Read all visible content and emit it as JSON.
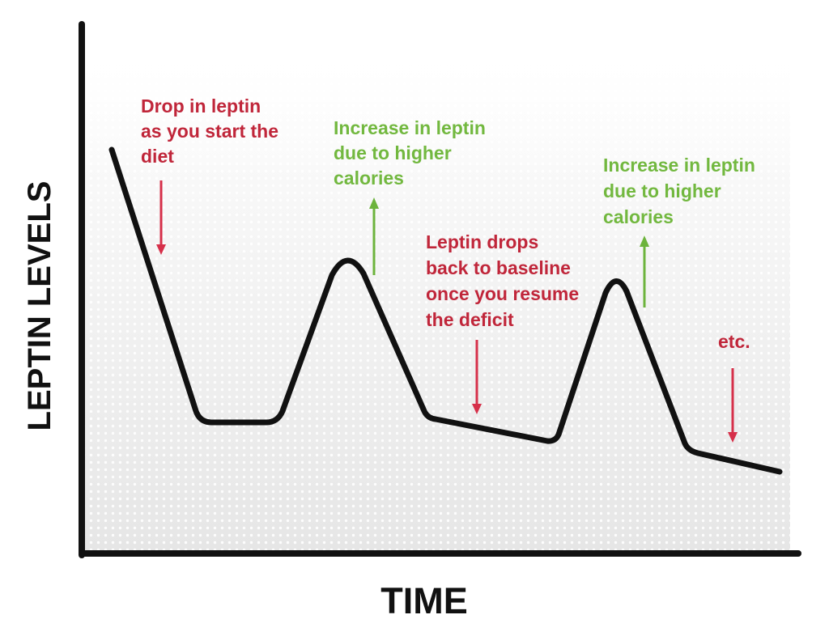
{
  "diagram": {
    "y_axis_title": "LEPTIN LEVELS",
    "x_axis_title": "TIME",
    "annotations": [
      {
        "id": "drop-start",
        "kind": "drop",
        "lines": [
          "Drop in leptin",
          "as you start the",
          "diet"
        ]
      },
      {
        "id": "increase-1",
        "kind": "increase",
        "lines": [
          "Increase in leptin",
          "due to higher",
          "calories"
        ]
      },
      {
        "id": "drop-baseline",
        "kind": "drop",
        "lines": [
          "Leptin drops",
          "back to baseline",
          "once you resume",
          "the deficit"
        ]
      },
      {
        "id": "increase-2",
        "kind": "increase",
        "lines": [
          "Increase in leptin",
          "due to higher",
          "calories"
        ]
      },
      {
        "id": "etc",
        "kind": "drop",
        "lines": [
          "etc."
        ]
      }
    ]
  },
  "colors": {
    "drop": "#c0263a",
    "increase": "#72b83f",
    "drop_arrow": "#d6304a",
    "increase_arrow": "#6cb33c",
    "line": "#111111",
    "axis": "#111111"
  }
}
